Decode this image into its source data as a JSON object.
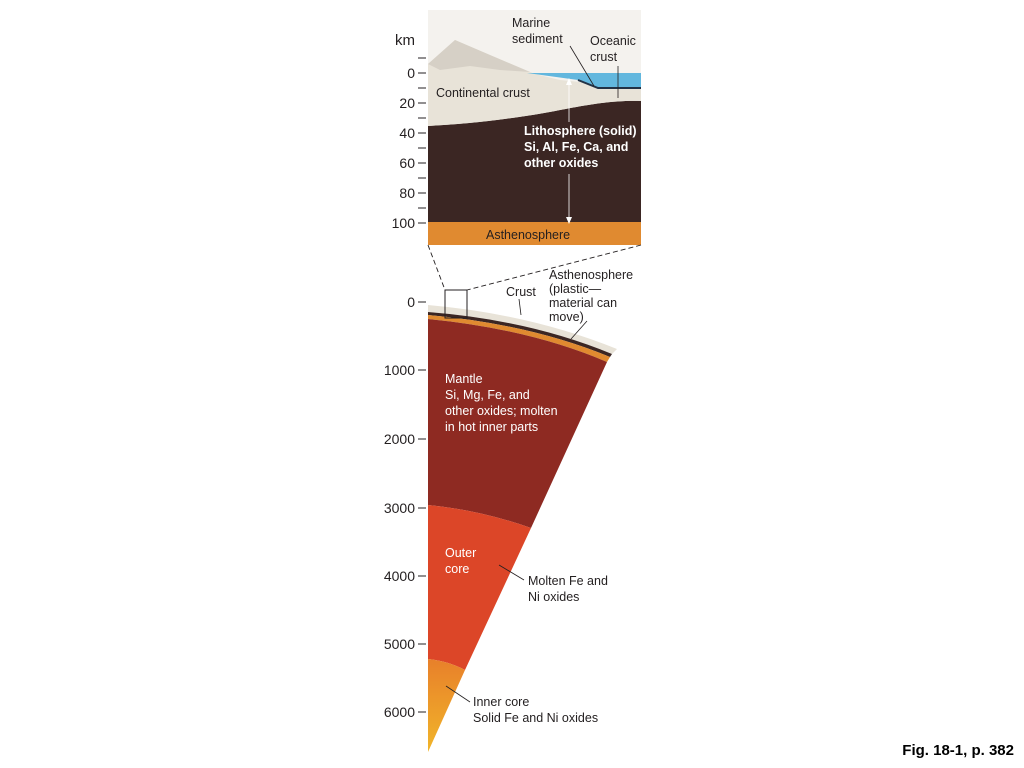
{
  "top_panel": {
    "unit": "km",
    "ticks": [
      "0",
      "20",
      "40",
      "60",
      "80",
      "100"
    ],
    "labels": {
      "marine_sediment_1": "Marine",
      "marine_sediment_2": "sediment",
      "oceanic_crust_1": "Oceanic",
      "oceanic_crust_2": "crust",
      "continental_crust": "Continental crust",
      "lithosphere_1": "Lithosphere (solid)",
      "lithosphere_2": "Si, Al, Fe, Ca, and",
      "lithosphere_3": "other oxides",
      "asthenosphere": "Asthenosphere"
    }
  },
  "bottom_panel": {
    "ticks": [
      "0",
      "1000",
      "2000",
      "3000",
      "4000",
      "5000",
      "6000"
    ],
    "labels": {
      "crust": "Crust",
      "asthenosphere_1": "Asthenosphere",
      "asthenosphere_2": "(plastic—",
      "asthenosphere_3": "material can",
      "asthenosphere_4": "move)",
      "mantle_1": "Mantle",
      "mantle_2": "Si, Mg, Fe, and",
      "mantle_3": "other oxides; molten",
      "mantle_4": "in hot inner parts",
      "outer_core_1": "Outer",
      "outer_core_2": "core",
      "molten_1": "Molten Fe and",
      "molten_2": "Ni oxides",
      "inner_core_1": "Inner core",
      "inner_core_2": "Solid Fe and Ni oxides"
    }
  },
  "caption": "Fig. 18-1, p. 382",
  "colors": {
    "continental_crust": "#e8e3d8",
    "mountain": "#d8d2c8",
    "lithosphere": "#3b2623",
    "asthenosphere": "#e08a30",
    "ocean": "#62b7de",
    "mantle": "#8e2a22",
    "outer_core": "#dc4628",
    "inner_core": "#eca428"
  }
}
